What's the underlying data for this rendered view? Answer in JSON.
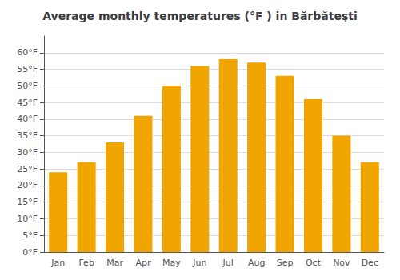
{
  "chart_data": {
    "type": "bar",
    "title": "Average monthly temperatures (°F ) in Bărbăteşti",
    "categories": [
      "Jan",
      "Feb",
      "Mar",
      "Apr",
      "May",
      "Jun",
      "Jul",
      "Aug",
      "Sep",
      "Oct",
      "Nov",
      "Dec"
    ],
    "values": [
      24,
      27,
      33,
      41,
      50,
      56,
      58,
      57,
      53,
      46,
      35,
      27
    ],
    "color": "#F0A500",
    "ylim": [
      0,
      65
    ],
    "yticks": [
      {
        "value": 0,
        "label": "0°F"
      },
      {
        "value": 5,
        "label": "5°F"
      },
      {
        "value": 10,
        "label": "10°F"
      },
      {
        "value": 15,
        "label": "15°F"
      },
      {
        "value": 20,
        "label": "20°F"
      },
      {
        "value": 25,
        "label": "25°F"
      },
      {
        "value": 30,
        "label": "30°F"
      },
      {
        "value": 35,
        "label": "35°F"
      },
      {
        "value": 40,
        "label": "40°F"
      },
      {
        "value": 45,
        "label": "45°F"
      },
      {
        "value": 50,
        "label": "50°F"
      },
      {
        "value": 55,
        "label": "55°F"
      },
      {
        "value": 60,
        "label": "60°F"
      }
    ],
    "grid": true
  }
}
